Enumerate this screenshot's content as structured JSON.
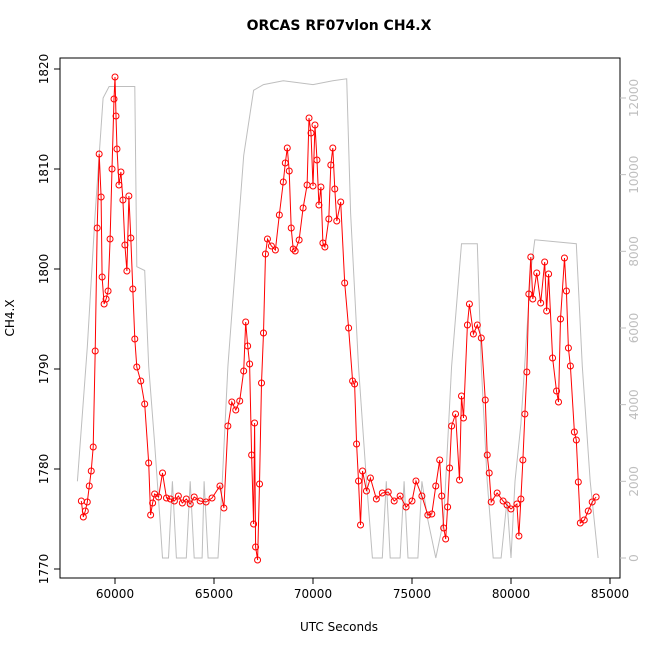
{
  "chart_data": {
    "type": "line",
    "title": "ORCAS RF07vlon CH4.X",
    "xlabel": "UTC Seconds",
    "ylabel": "CH4.X",
    "xlim": [
      57222,
      85505
    ],
    "ylim": [
      1769.1,
      1821.1
    ],
    "y2lim": [
      -522,
      13043
    ],
    "xticks": [
      60000,
      65000,
      70000,
      75000,
      80000,
      85000
    ],
    "yticks": [
      1770,
      1780,
      1790,
      1800,
      1810,
      1820
    ],
    "y2ticks": [
      0,
      2000,
      4000,
      6000,
      8000,
      10000,
      12000
    ],
    "series": [
      {
        "color": "#ff0000",
        "markers": true,
        "x": [
          58300,
          58400,
          58500,
          58600,
          58700,
          58800,
          58900,
          59000,
          59100,
          59200,
          59300,
          59350,
          59450,
          59550,
          59650,
          59750,
          59850,
          59950,
          60000,
          60050,
          60100,
          60200,
          60300,
          60400,
          60500,
          60600,
          60700,
          60800,
          60900,
          61000,
          61100,
          61300,
          61500,
          61700,
          61800,
          61900,
          62000,
          62200,
          62400,
          62600,
          62800,
          63000,
          63200,
          63400,
          63600,
          63800,
          64000,
          64300,
          64600,
          64900,
          65300,
          65500,
          65700,
          65900,
          66100,
          66300,
          66500,
          66600,
          66700,
          66800,
          66900,
          67000,
          67050,
          67100,
          67200,
          67300,
          67400,
          67500,
          67600,
          67700,
          67900,
          68100,
          68300,
          68500,
          68600,
          68700,
          68800,
          68900,
          69000,
          69100,
          69300,
          69500,
          69700,
          69800,
          69900,
          70000,
          70100,
          70200,
          70300,
          70400,
          70500,
          70600,
          70800,
          70900,
          71000,
          71100,
          71200,
          71400,
          71600,
          71800,
          72000,
          72100,
          72200,
          72300,
          72400,
          72500,
          72700,
          72900,
          73200,
          73500,
          73800,
          74100,
          74400,
          74700,
          75000,
          75200,
          75500,
          75800,
          76000,
          76200,
          76400,
          76500,
          76600,
          76700,
          76800,
          76900,
          77000,
          77200,
          77400,
          77500,
          77600,
          77800,
          77900,
          78100,
          78300,
          78500,
          78700,
          78800,
          78900,
          79000,
          79300,
          79600,
          79800,
          80000,
          80300,
          80400,
          80500,
          80600,
          80700,
          80800,
          80900,
          81000,
          81100,
          81300,
          81500,
          81700,
          81800,
          81900,
          82100,
          82300,
          82400,
          82500,
          82700,
          82800,
          82900,
          83000,
          83200,
          83300,
          83400,
          83500,
          83700,
          83900,
          84100,
          84300
        ],
        "values": [
          1776.8,
          1775.2,
          1775.8,
          1776.7,
          1778.3,
          1779.8,
          1782.2,
          1791.8,
          1804.1,
          1811.5,
          1807.2,
          1799.2,
          1796.5,
          1797.0,
          1797.8,
          1803.0,
          1810.0,
          1817.0,
          1819.2,
          1815.3,
          1812.0,
          1808.4,
          1809.7,
          1806.9,
          1802.4,
          1799.8,
          1807.3,
          1803.1,
          1798.0,
          1793.0,
          1790.2,
          1788.8,
          1786.5,
          1780.6,
          1775.4,
          1776.6,
          1777.5,
          1777.2,
          1779.6,
          1777.1,
          1777.0,
          1776.8,
          1777.3,
          1776.6,
          1777.0,
          1776.5,
          1777.2,
          1776.8,
          1776.7,
          1777.1,
          1778.3,
          1776.1,
          1784.3,
          1786.7,
          1785.9,
          1786.8,
          1789.8,
          1794.7,
          1792.3,
          1790.5,
          1781.4,
          1774.5,
          1784.6,
          1772.2,
          1770.9,
          1778.5,
          1788.6,
          1793.6,
          1801.5,
          1803.0,
          1802.3,
          1801.9,
          1805.4,
          1808.7,
          1810.6,
          1812.1,
          1809.8,
          1804.1,
          1802.0,
          1801.8,
          1802.9,
          1806.1,
          1808.4,
          1815.1,
          1813.6,
          1808.3,
          1814.4,
          1810.9,
          1806.4,
          1808.2,
          1802.6,
          1802.2,
          1805.0,
          1810.4,
          1812.1,
          1808.0,
          1804.8,
          1806.7,
          1798.6,
          1794.1,
          1788.8,
          1788.5,
          1782.5,
          1778.8,
          1774.4,
          1779.8,
          1777.8,
          1779.1,
          1777.0,
          1777.6,
          1777.7,
          1776.8,
          1777.3,
          1776.2,
          1776.8,
          1778.8,
          1777.3,
          1775.4,
          1775.5,
          1778.3,
          1780.9,
          1777.3,
          1774.1,
          1773.0,
          1776.2,
          1780.1,
          1784.3,
          1785.5,
          1778.9,
          1787.3,
          1785.1,
          1794.4,
          1796.5,
          1793.5,
          1794.4,
          1793.1,
          1786.9,
          1781.4,
          1779.6,
          1776.7,
          1777.6,
          1776.8,
          1776.4,
          1776.0,
          1776.5,
          1773.3,
          1777.0,
          1780.9,
          1785.5,
          1789.7,
          1797.5,
          1801.2,
          1797.0,
          1799.6,
          1796.6,
          1800.7,
          1795.8,
          1799.5,
          1791.1,
          1787.8,
          1786.7,
          1795.0,
          1801.1,
          1797.8,
          1792.1,
          1790.3,
          1783.7,
          1782.9,
          1778.7,
          1774.6,
          1774.9,
          1775.8,
          1776.7,
          1777.2
        ]
      },
      {
        "color": "#bebebe",
        "axis": "y2",
        "markers": false,
        "x": [
          58100,
          58600,
          59000,
          59400,
          59700,
          61000,
          61100,
          61500,
          61700,
          62000,
          62300,
          62400,
          62700,
          62900,
          63100,
          63600,
          63800,
          64000,
          64400,
          64500,
          64700,
          65200,
          65400,
          65700,
          66500,
          67000,
          67500,
          68500,
          70000,
          71000,
          71700,
          71900,
          72300,
          72700,
          73000,
          73500,
          73700,
          73900,
          74400,
          74600,
          74800,
          75300,
          75500,
          75800,
          76200,
          76600,
          77000,
          77500,
          78300,
          78500,
          78800,
          79100,
          79500,
          79800,
          80000,
          80200,
          80500,
          81000,
          81200,
          83300,
          83600,
          84000,
          84400
        ],
        "values": [
          2000,
          5500,
          9000,
          12000,
          12300,
          12300,
          7600,
          7500,
          5000,
          3000,
          800,
          0,
          0,
          2000,
          0,
          0,
          2000,
          0,
          0,
          2000,
          0,
          0,
          1800,
          5000,
          10500,
          12200,
          12350,
          12450,
          12350,
          12450,
          12500,
          9000,
          5000,
          2000,
          0,
          0,
          2000,
          0,
          0,
          2000,
          0,
          0,
          2000,
          1000,
          0,
          1000,
          5000,
          8200,
          8200,
          5000,
          2000,
          0,
          0,
          1500,
          0,
          2000,
          3500,
          7500,
          8300,
          8200,
          5000,
          2000,
          0
        ]
      }
    ]
  }
}
